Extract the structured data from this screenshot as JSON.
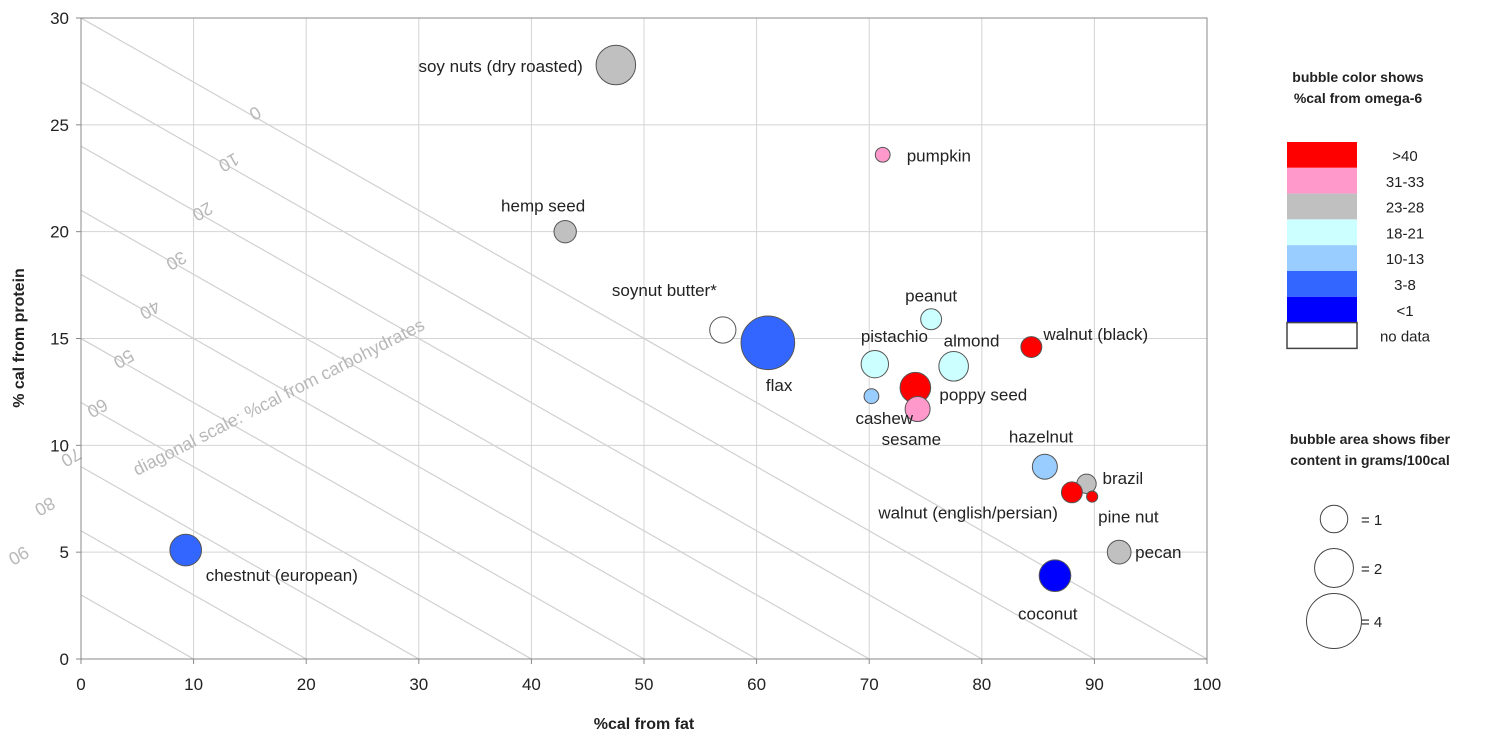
{
  "chart_data": {
    "type": "scatter",
    "subtype": "bubble",
    "xlabel": "%cal from fat",
    "ylabel": "% cal from protein",
    "xlim": [
      0,
      100
    ],
    "ylim": [
      0,
      30
    ],
    "x_ticks": [
      "0",
      "10",
      "20",
      "30",
      "40",
      "50",
      "60",
      "70",
      "80",
      "90",
      "100"
    ],
    "y_ticks": [
      "0",
      "5",
      "10",
      "15",
      "20",
      "25",
      "30"
    ],
    "grid": true,
    "diagonal_scale": {
      "title": "diagonal scale: %cal from carbohydrates",
      "values": [
        "0",
        "10",
        "20",
        "30",
        "40",
        "50",
        "60",
        "70",
        "80",
        "90"
      ]
    },
    "color_legend": {
      "title_line1": "bubble color shows",
      "title_line2": "%cal from omega-6",
      "placement": "right",
      "entries": [
        {
          "label": ">40",
          "color": "#ff0000"
        },
        {
          "label": "31-33",
          "color": "#ff99cc"
        },
        {
          "label": "23-28",
          "color": "#c0c0c0"
        },
        {
          "label": "18-21",
          "color": "#ccffff"
        },
        {
          "label": "10-13",
          "color": "#99ccff"
        },
        {
          "label": "3-8",
          "color": "#3366ff"
        },
        {
          "label": "<1",
          "color": "#0000ff"
        },
        {
          "label": "no data",
          "color": "#ffffff"
        }
      ]
    },
    "size_legend": {
      "title_line1": "bubble area shows fiber",
      "title_line2": "content in grams/100cal",
      "entries": [
        {
          "label": "= 1",
          "value": 1
        },
        {
          "label": "= 2",
          "value": 2
        },
        {
          "label": "= 4",
          "value": 4
        }
      ]
    },
    "points": [
      {
        "name": "soy nuts (dry roasted)",
        "x": 47.5,
        "y": 27.8,
        "fiber": 2.5,
        "color_class": "23-28"
      },
      {
        "name": "pumpkin",
        "x": 71.2,
        "y": 23.6,
        "fiber": 0.35,
        "color_class": "31-33"
      },
      {
        "name": "hemp seed",
        "x": 43,
        "y": 20,
        "fiber": 0.8,
        "color_class": "23-28"
      },
      {
        "name": "soynut butter*",
        "x": 57,
        "y": 15.4,
        "fiber": 1.1,
        "color_class": "no data"
      },
      {
        "name": "flax",
        "x": 61,
        "y": 14.8,
        "fiber": 4.6,
        "color_class": "3-8"
      },
      {
        "name": "peanut",
        "x": 75.5,
        "y": 15.9,
        "fiber": 0.7,
        "color_class": "18-21"
      },
      {
        "name": "pistachio",
        "x": 70.5,
        "y": 13.8,
        "fiber": 1.2,
        "color_class": "18-21"
      },
      {
        "name": "almond",
        "x": 77.5,
        "y": 13.7,
        "fiber": 1.4,
        "color_class": "18-21"
      },
      {
        "name": "walnut (black)",
        "x": 84.4,
        "y": 14.6,
        "fiber": 0.7,
        "color_class": ">40"
      },
      {
        "name": "cashew",
        "x": 70.2,
        "y": 12.3,
        "fiber": 0.35,
        "color_class": "10-13"
      },
      {
        "name": "poppy seed",
        "x": 74.1,
        "y": 12.7,
        "fiber": 1.5,
        "color_class": ">40"
      },
      {
        "name": "sesame",
        "x": 74.3,
        "y": 11.7,
        "fiber": 1.0,
        "color_class": "31-33"
      },
      {
        "name": "hazelnut",
        "x": 85.6,
        "y": 9.0,
        "fiber": 1.0,
        "color_class": "10-13"
      },
      {
        "name": "brazil",
        "x": 89.3,
        "y": 8.2,
        "fiber": 0.6,
        "color_class": "23-28"
      },
      {
        "name": "walnut (english/persian)",
        "x": 88.0,
        "y": 7.8,
        "fiber": 0.7,
        "color_class": ">40"
      },
      {
        "name": "pine nut",
        "x": 89.8,
        "y": 7.6,
        "fiber": 0.2,
        "color_class": ">40"
      },
      {
        "name": "pecan",
        "x": 92.2,
        "y": 5.0,
        "fiber": 0.9,
        "color_class": "23-28"
      },
      {
        "name": "chestnut (european)",
        "x": 9.3,
        "y": 5.1,
        "fiber": 1.6,
        "color_class": "3-8"
      },
      {
        "name": "coconut",
        "x": 86.5,
        "y": 3.9,
        "fiber": 1.6,
        "color_class": "<1"
      }
    ]
  }
}
